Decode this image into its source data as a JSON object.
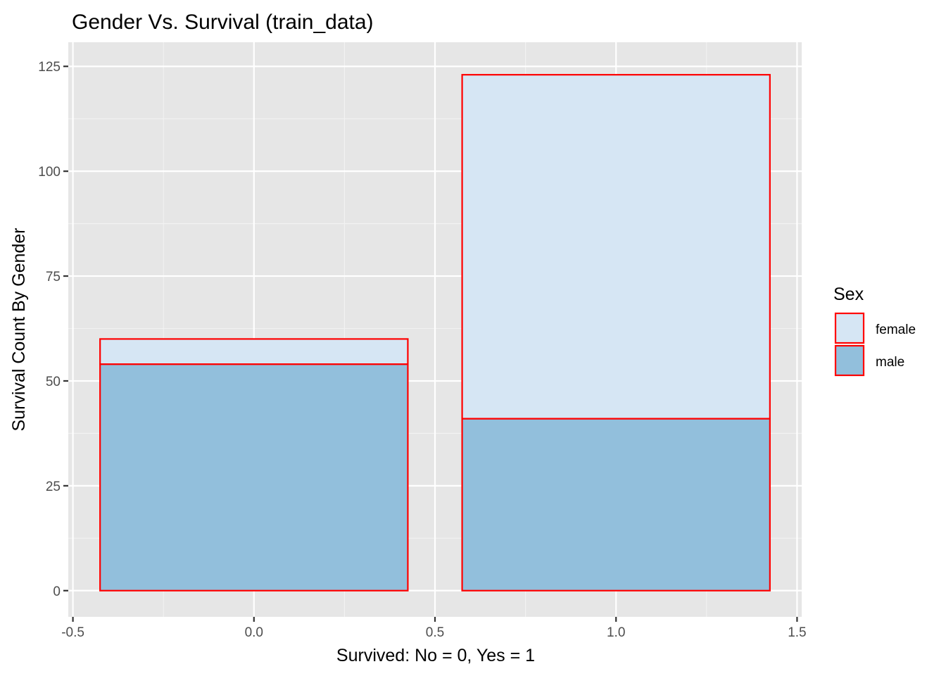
{
  "chart_data": {
    "type": "bar",
    "stacked": true,
    "title": "Gender Vs. Survival (train_data)",
    "xlabel": "Survived: No = 0, Yes = 1",
    "ylabel": "Survival Count By Gender",
    "x": [
      0,
      1
    ],
    "bar_width": 0.85,
    "series": [
      {
        "name": "male",
        "values": [
          54,
          41
        ],
        "color": "#92BFDC"
      },
      {
        "name": "female",
        "values": [
          6,
          82
        ],
        "color": "#D6E6F4"
      }
    ],
    "bar_outline_color": "#FF0000",
    "xlim": [
      -0.5,
      1.5
    ],
    "ylim": [
      0,
      125
    ],
    "x_ticks": [
      "-0.5",
      "0.0",
      "0.5",
      "1.0",
      "1.5"
    ],
    "y_ticks": [
      "0",
      "25",
      "50",
      "75",
      "100",
      "125"
    ],
    "grid": true,
    "panel_background": "#E6E6E6",
    "legend": {
      "title": "Sex",
      "position": "right",
      "entries": [
        "female",
        "male"
      ]
    }
  }
}
